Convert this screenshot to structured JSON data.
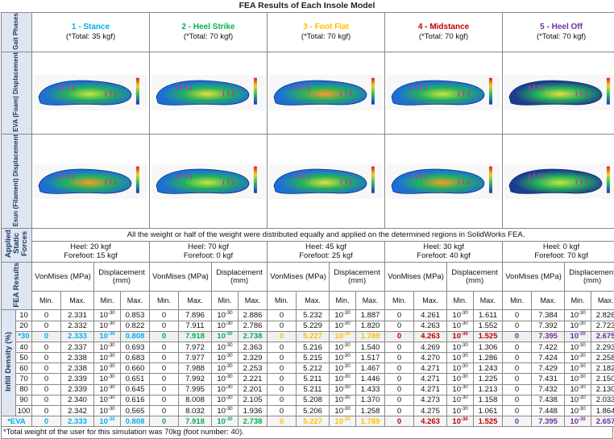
{
  "title": "FEA Results of Each Insole Model",
  "row_labels": {
    "gait": "Gait Phases",
    "eva": "EVA (Foam) Displacement",
    "esun": "Esun (Filament) Displacement",
    "forces": "Applied Static Forces",
    "fea": "FEA Results",
    "infill": "Infill Density (%)"
  },
  "phases": [
    {
      "name": "1 - Stance",
      "total": "(*Total: 35 kgf)",
      "color": "#00b0f0",
      "heel": "Heel: 20 kgf",
      "forefoot": "Forefoot: 15 kgf"
    },
    {
      "name": "2 - Heel Strike",
      "total": "(*Total: 70 kgf)",
      "color": "#00b050",
      "heel": "Heel: 70 kgf",
      "forefoot": "Forefoot: 0 kgf"
    },
    {
      "name": "3 - Foot Flat",
      "total": "(*Total: 70 kgf)",
      "color": "#ffc000",
      "heel": "Heel: 45 kgf",
      "forefoot": "Forefoot: 25 kgf"
    },
    {
      "name": "4 - Midstance",
      "total": "(*Total: 70 kgf)",
      "color": "#c00000",
      "heel": "Heel: 30 kgf",
      "forefoot": "Forefoot: 40 kgf"
    },
    {
      "name": "5 - Heel Off",
      "total": "(*Total: 70 kgf)",
      "color": "#7030a0",
      "heel": "Heel: 0 kgf",
      "forefoot": "Forefoot: 70 kgf"
    }
  ],
  "note": "All the weight or half of the weight were distributed equally and applied on the determined regions in SolidWorks FEA.",
  "headers": {
    "vonmises": "VonMises (MPa)",
    "displacement": "Displacement (mm)",
    "min": "Min.",
    "max": "Max."
  },
  "disp_min_base": "10",
  "disp_min_exp": "-30",
  "rows": [
    {
      "label": "10",
      "v": [
        [
          "0",
          "2.331",
          "0.853"
        ],
        [
          "0",
          "7.896",
          "2.886"
        ],
        [
          "0",
          "5.232",
          "1.887"
        ],
        [
          "0",
          "4.261",
          "1.611"
        ],
        [
          "0",
          "7.384",
          "2.826"
        ]
      ]
    },
    {
      "label": "20",
      "v": [
        [
          "0",
          "2.332",
          "0.822"
        ],
        [
          "0",
          "7.911",
          "2.786"
        ],
        [
          "0",
          "5.229",
          "1.820"
        ],
        [
          "0",
          "4.263",
          "1.552"
        ],
        [
          "0",
          "7.392",
          "2.723"
        ]
      ]
    },
    {
      "label": "*30",
      "highlight": true,
      "v": [
        [
          "0",
          "2.333",
          "0.808"
        ],
        [
          "0",
          "7.918",
          "2.738"
        ],
        [
          "0",
          "5.227",
          "1.789"
        ],
        [
          "0",
          "4.263",
          "1.525"
        ],
        [
          "0",
          "7.395",
          "2.675"
        ]
      ]
    },
    {
      "label": "40",
      "v": [
        [
          "0",
          "2.337",
          "0.693"
        ],
        [
          "0",
          "7.972",
          "2.363"
        ],
        [
          "0",
          "5.216",
          "1.540"
        ],
        [
          "0",
          "4.269",
          "1.306"
        ],
        [
          "0",
          "7.422",
          "2.293"
        ]
      ]
    },
    {
      "label": "50",
      "v": [
        [
          "0",
          "2.338",
          "0.683"
        ],
        [
          "0",
          "7.977",
          "2.329"
        ],
        [
          "0",
          "5.215",
          "1.517"
        ],
        [
          "0",
          "4.270",
          "1.286"
        ],
        [
          "0",
          "7.424",
          "2.258"
        ]
      ]
    },
    {
      "label": "60",
      "v": [
        [
          "0",
          "2.338",
          "0.660"
        ],
        [
          "0",
          "7.988",
          "2.253"
        ],
        [
          "0",
          "5.212",
          "1.467"
        ],
        [
          "0",
          "4.271",
          "1.243"
        ],
        [
          "0",
          "7.429",
          "2.182"
        ]
      ]
    },
    {
      "label": "70",
      "v": [
        [
          "0",
          "2.339",
          "0.651"
        ],
        [
          "0",
          "7.992",
          "2.221"
        ],
        [
          "0",
          "5.211",
          "1.446"
        ],
        [
          "0",
          "4.271",
          "1.225"
        ],
        [
          "0",
          "7.431",
          "2.150"
        ]
      ]
    },
    {
      "label": "80",
      "v": [
        [
          "0",
          "2.339",
          "0.645"
        ],
        [
          "0",
          "7.995",
          "2.201"
        ],
        [
          "0",
          "5.211",
          "1.433"
        ],
        [
          "0",
          "4.271",
          "1.213"
        ],
        [
          "0",
          "7.432",
          "2.130"
        ]
      ]
    },
    {
      "label": "90",
      "v": [
        [
          "0",
          "2.340",
          "0.616"
        ],
        [
          "0",
          "8.008",
          "2.105"
        ],
        [
          "0",
          "5.208",
          "1.370"
        ],
        [
          "0",
          "4.273",
          "1.158"
        ],
        [
          "0",
          "7.438",
          "2.033"
        ]
      ]
    },
    {
      "label": "100",
      "v": [
        [
          "0",
          "2.342",
          "0.565"
        ],
        [
          "0",
          "8.032",
          "1.936"
        ],
        [
          "0",
          "5.206",
          "1.258"
        ],
        [
          "0",
          "4.275",
          "1.061"
        ],
        [
          "0",
          "7.448",
          "1.864"
        ]
      ]
    }
  ],
  "eva_row": {
    "label": "*EVA",
    "v": [
      [
        "0",
        "2.333",
        "0.808"
      ],
      [
        "0",
        "7.918",
        "2.738"
      ],
      [
        "0",
        "5.227",
        "1.789"
      ],
      [
        "0",
        "4.263",
        "1.525"
      ],
      [
        "0",
        "7.395",
        "2.657"
      ]
    ]
  },
  "footnote": "*Total weight of the user for this simulation was 70kg (foot number: 40)."
}
